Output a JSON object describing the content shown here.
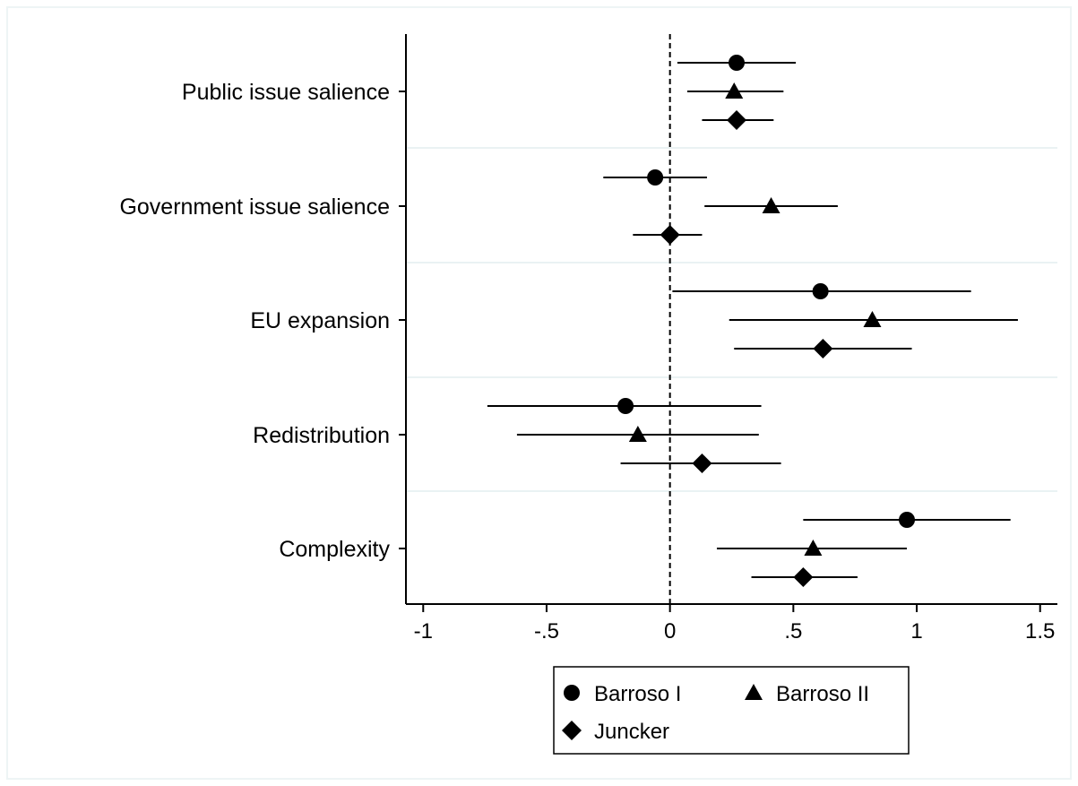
{
  "chart_data": {
    "type": "scatter",
    "orientation": "horizontal",
    "categories": [
      "Public issue salience",
      "Government issue salience",
      "EU expansion",
      "Redistribution",
      "Complexity"
    ],
    "xlim": [
      -1.07,
      1.57
    ],
    "xticks": [
      {
        "value": -1,
        "label": "-1"
      },
      {
        "value": -0.5,
        "label": "-.5"
      },
      {
        "value": 0,
        "label": "0"
      },
      {
        "value": 0.5,
        "label": ".5"
      },
      {
        "value": 1,
        "label": "1"
      },
      {
        "value": 1.5,
        "label": "1.5"
      }
    ],
    "reference_line": {
      "x": 0,
      "style": "dashed"
    },
    "grid": {
      "horizontal_separators": true,
      "color": "#eaf2f3"
    },
    "legend_position": "bottom",
    "series": [
      {
        "name": "Barroso I",
        "marker": "circle",
        "estimates": [
          0.27,
          -0.06,
          0.61,
          -0.18,
          0.96
        ],
        "ci_low": [
          0.03,
          -0.27,
          0.01,
          -0.74,
          0.54
        ],
        "ci_high": [
          0.51,
          0.15,
          1.22,
          0.37,
          1.38
        ]
      },
      {
        "name": "Barroso II",
        "marker": "triangle",
        "estimates": [
          0.26,
          0.41,
          0.82,
          -0.13,
          0.58
        ],
        "ci_low": [
          0.07,
          0.14,
          0.24,
          -0.62,
          0.19
        ],
        "ci_high": [
          0.46,
          0.68,
          1.41,
          0.36,
          0.96
        ]
      },
      {
        "name": "Juncker",
        "marker": "diamond",
        "estimates": [
          0.27,
          0.0,
          0.62,
          0.13,
          0.54
        ],
        "ci_low": [
          0.13,
          -0.15,
          0.26,
          -0.2,
          0.33
        ],
        "ci_high": [
          0.42,
          0.13,
          0.98,
          0.45,
          0.76
        ]
      }
    ]
  }
}
